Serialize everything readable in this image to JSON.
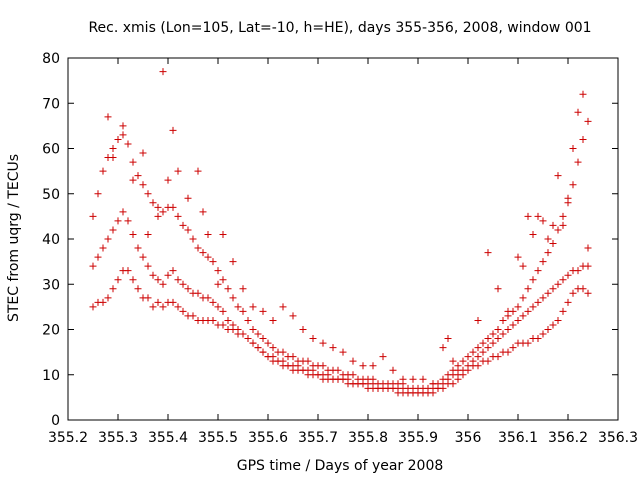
{
  "chart_data": {
    "type": "scatter",
    "title": "Rec. xmis (Lon=105, Lat=-10, h=HE), days 355-356, 2008, window 001",
    "xlabel": "GPS time / Days of year 2008",
    "ylabel": "STEC from uqrg / TECUs",
    "xlim": [
      355.2,
      356.3
    ],
    "ylim": [
      0,
      80
    ],
    "xticks": [
      "355.2",
      "355.3",
      "355.4",
      "355.5",
      "355.6",
      "355.7",
      "355.8",
      "355.9",
      "356",
      "356.1",
      "356.2",
      "356.3"
    ],
    "yticks": [
      "0",
      "10",
      "20",
      "30",
      "40",
      "50",
      "60",
      "70",
      "80"
    ],
    "marker": "+",
    "color": "#cc0000",
    "grid": false,
    "legend": "none",
    "series": [
      {
        "x": [
          355.25,
          355.26,
          355.27,
          355.28,
          355.29,
          355.3,
          355.31,
          355.32,
          355.33,
          355.34,
          355.35,
          355.36,
          355.37,
          355.38,
          355.39,
          355.4,
          355.41,
          355.42,
          355.43,
          355.44,
          355.45,
          355.46,
          355.47,
          355.48,
          355.49,
          355.5,
          355.51,
          355.52,
          355.53,
          355.54,
          355.55,
          355.56,
          355.57,
          355.58,
          355.59,
          355.6,
          355.61,
          355.62,
          355.63,
          355.64,
          355.65,
          355.66,
          355.67,
          355.68,
          355.69,
          355.7,
          355.71,
          355.72,
          355.73,
          355.74,
          355.75,
          355.76,
          355.77,
          355.78,
          355.79,
          355.8,
          355.81,
          355.82,
          355.83,
          355.84,
          355.85,
          355.86,
          355.87,
          355.88,
          355.89,
          355.9,
          355.91,
          355.92,
          355.93,
          355.94,
          355.95,
          355.96,
          355.97,
          355.98,
          355.99,
          356.0,
          356.01,
          356.02,
          356.03,
          356.04,
          356.05,
          356.06,
          356.07,
          356.08,
          356.09,
          356.1,
          356.11,
          356.12,
          356.13,
          356.14,
          356.15,
          356.16,
          356.17,
          356.18,
          356.19,
          356.2,
          356.21,
          356.22,
          356.23,
          356.24
        ],
        "y": [
          25,
          26,
          26,
          27,
          29,
          31,
          33,
          33,
          31,
          29,
          27,
          27,
          25,
          26,
          25,
          26,
          26,
          25,
          24,
          23,
          23,
          22,
          22,
          22,
          22,
          21,
          21,
          20,
          20,
          19,
          19,
          18,
          17,
          16,
          15,
          14,
          13,
          13,
          12,
          12,
          11,
          11,
          11,
          10,
          10,
          10,
          9,
          9,
          9,
          9,
          9,
          8,
          8,
          8,
          8,
          7,
          7,
          7,
          7,
          7,
          7,
          6,
          6,
          6,
          6,
          6,
          6,
          6,
          6,
          7,
          7,
          8,
          8,
          9,
          10,
          11,
          12,
          12,
          13,
          13,
          14,
          14,
          15,
          15,
          16,
          17,
          17,
          17,
          18,
          18,
          19,
          20,
          21,
          22,
          24,
          26,
          28,
          29,
          29,
          28
        ]
      },
      {
        "x": [
          355.25,
          355.26,
          355.27,
          355.28,
          355.29,
          355.3,
          355.31,
          355.32,
          355.33,
          355.34,
          355.35,
          355.36,
          355.37,
          355.38,
          355.39,
          355.4,
          355.41,
          355.42,
          355.43,
          355.44,
          355.45,
          355.46,
          355.47,
          355.48,
          355.49,
          355.5,
          355.51,
          355.52,
          355.53,
          355.54,
          355.55,
          355.56,
          355.57,
          355.58,
          355.59,
          355.6,
          355.61,
          355.62,
          355.63,
          355.64,
          355.65,
          355.66,
          355.67,
          355.68,
          355.69,
          355.7,
          355.71,
          355.72,
          355.73,
          355.74,
          355.75,
          355.76,
          355.77,
          355.78,
          355.79,
          355.8,
          355.81,
          355.82,
          355.83,
          355.84,
          355.85,
          355.86,
          355.87,
          355.88,
          355.89,
          355.9,
          355.91,
          355.92,
          355.93,
          355.94,
          355.95,
          355.96,
          355.97,
          355.98,
          355.99,
          356.0,
          356.01,
          356.02,
          356.03,
          356.04,
          356.05,
          356.06,
          356.07,
          356.08,
          356.09,
          356.1,
          356.11,
          356.12,
          356.13,
          356.14,
          356.15,
          356.16,
          356.17,
          356.18,
          356.19,
          356.2,
          356.21,
          356.22,
          356.23,
          356.24
        ],
        "y": [
          34,
          36,
          38,
          40,
          42,
          44,
          46,
          44,
          41,
          38,
          36,
          34,
          32,
          31,
          30,
          32,
          33,
          31,
          30,
          29,
          28,
          28,
          27,
          27,
          26,
          25,
          24,
          22,
          21,
          20,
          19,
          18,
          17,
          16,
          15,
          14,
          14,
          13,
          13,
          12,
          12,
          12,
          11,
          11,
          11,
          10,
          10,
          10,
          9,
          9,
          9,
          9,
          8,
          8,
          8,
          8,
          8,
          7,
          7,
          7,
          7,
          7,
          7,
          6,
          6,
          6,
          6,
          6,
          7,
          7,
          8,
          9,
          10,
          11,
          11,
          12,
          13,
          14,
          15,
          16,
          17,
          18,
          19,
          20,
          21,
          22,
          23,
          24,
          25,
          26,
          27,
          28,
          29,
          30,
          31,
          32,
          33,
          33,
          34,
          34
        ]
      },
      {
        "x": [
          355.25,
          355.26,
          355.27,
          355.28,
          355.29,
          355.3,
          355.31,
          355.32,
          355.33,
          355.34,
          355.35,
          355.36,
          355.37,
          355.38,
          355.39,
          355.4,
          355.41,
          355.42,
          355.43,
          355.44,
          355.45,
          355.46,
          355.47,
          355.48,
          355.49,
          355.5,
          355.51,
          355.52,
          355.53,
          355.54,
          355.55,
          355.56,
          355.57,
          355.58,
          355.59,
          355.6,
          355.61,
          355.62,
          355.63,
          355.64,
          355.65,
          355.66,
          355.67,
          355.68,
          355.69,
          355.7,
          355.71,
          355.72,
          355.73,
          355.74,
          355.75,
          355.76,
          355.77,
          355.78,
          355.79,
          355.8,
          355.81,
          355.82,
          355.83,
          355.84,
          355.85,
          355.86,
          355.87,
          355.88,
          355.89,
          355.9,
          355.91,
          355.92,
          355.93,
          355.94,
          355.95,
          355.96,
          355.97,
          355.98,
          355.99,
          356.0,
          356.01,
          356.02,
          356.03,
          356.04,
          356.05,
          356.06,
          356.07,
          356.08,
          356.09,
          356.1,
          356.11,
          356.12,
          356.13,
          356.14,
          356.15,
          356.16,
          356.17,
          356.18,
          356.19,
          356.2,
          356.21,
          356.22,
          356.23,
          356.24
        ],
        "y": [
          45,
          50,
          55,
          58,
          60,
          62,
          63,
          61,
          57,
          54,
          52,
          50,
          48,
          47,
          46,
          47,
          47,
          45,
          43,
          42,
          40,
          38,
          37,
          36,
          35,
          33,
          31,
          29,
          27,
          25,
          24,
          22,
          20,
          19,
          18,
          17,
          16,
          15,
          15,
          14,
          14,
          13,
          13,
          13,
          12,
          12,
          12,
          11,
          11,
          11,
          10,
          10,
          10,
          9,
          9,
          9,
          9,
          8,
          8,
          8,
          8,
          8,
          8,
          7,
          7,
          7,
          7,
          7,
          8,
          8,
          9,
          10,
          11,
          12,
          13,
          14,
          15,
          16,
          17,
          18,
          19,
          20,
          22,
          23,
          24,
          25,
          27,
          29,
          31,
          33,
          35,
          37,
          39,
          42,
          45,
          48,
          52,
          57,
          62,
          66
        ]
      },
      {
        "x": [
          355.28,
          355.29,
          355.31,
          355.33,
          355.35,
          355.36,
          355.38,
          355.39,
          355.4,
          355.41,
          355.42,
          355.44,
          355.46,
          355.47,
          355.48,
          355.5,
          355.51,
          355.53,
          355.55,
          355.57,
          355.59,
          355.61,
          355.63,
          355.65,
          355.67,
          355.69,
          355.71,
          355.73,
          355.75,
          355.77,
          355.79,
          355.81,
          355.83,
          355.85,
          355.87,
          355.89,
          355.91,
          355.93,
          355.95,
          355.96,
          355.97,
          355.98,
          356.02,
          356.04,
          356.06,
          356.08,
          356.1,
          356.11,
          356.12,
          356.13,
          356.14,
          356.15,
          356.16,
          356.17,
          356.18,
          356.19,
          356.2,
          356.21,
          356.22,
          356.23,
          356.24
        ],
        "y": [
          67,
          58,
          65,
          53,
          59,
          41,
          45,
          77,
          53,
          64,
          55,
          49,
          55,
          46,
          41,
          30,
          41,
          35,
          29,
          25,
          24,
          22,
          25,
          23,
          20,
          18,
          17,
          16,
          15,
          13,
          12,
          12,
          14,
          11,
          9,
          9,
          9,
          8,
          16,
          18,
          13,
          10,
          22,
          37,
          29,
          24,
          36,
          34,
          45,
          41,
          45,
          44,
          40,
          43,
          54,
          43,
          49,
          60,
          68,
          72,
          38
        ]
      }
    ]
  }
}
